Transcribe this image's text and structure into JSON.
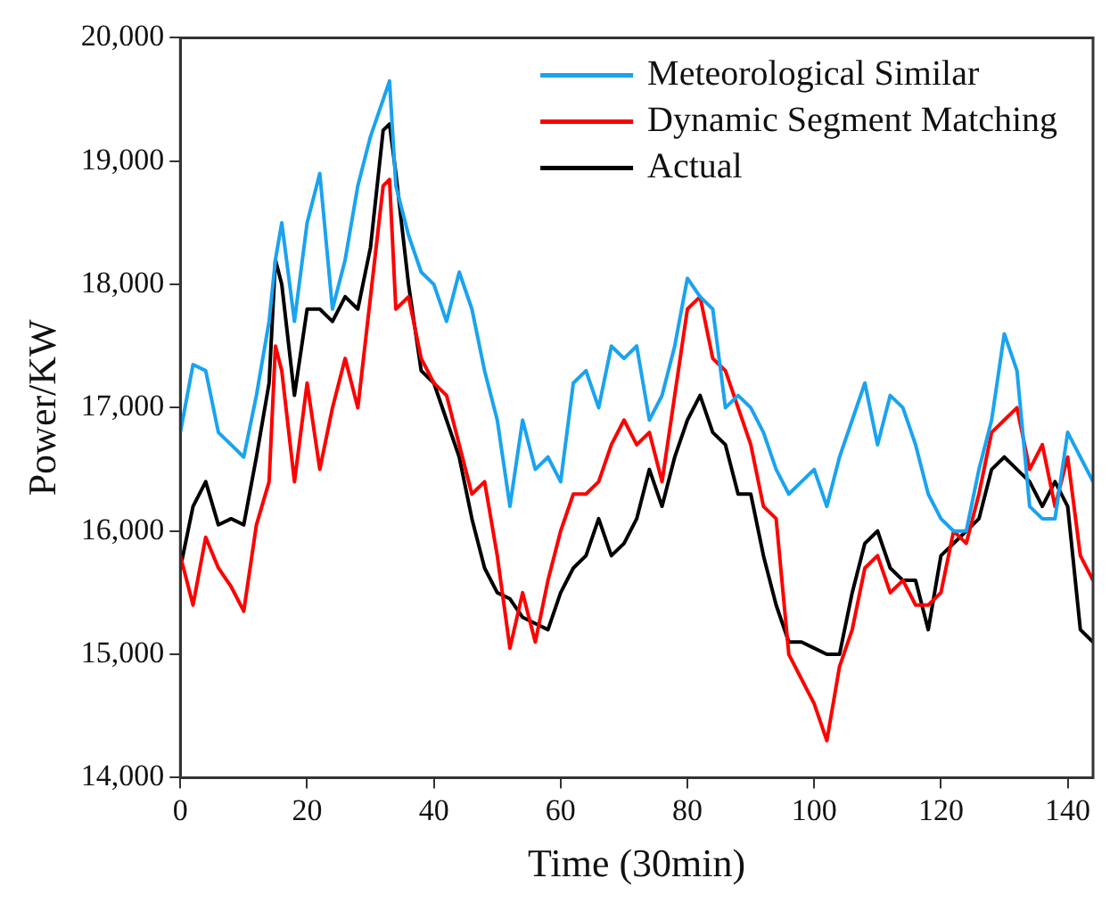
{
  "chart_data": {
    "type": "line",
    "xlabel": "Time (30min)",
    "ylabel": "Power/KW",
    "x": [
      0,
      2,
      4,
      6,
      8,
      10,
      12,
      14,
      15,
      16,
      18,
      20,
      22,
      24,
      26,
      28,
      30,
      32,
      33,
      34,
      36,
      38,
      40,
      42,
      44,
      46,
      48,
      50,
      52,
      54,
      56,
      58,
      60,
      62,
      64,
      66,
      68,
      70,
      72,
      74,
      76,
      78,
      80,
      82,
      84,
      86,
      88,
      90,
      92,
      94,
      96,
      98,
      100,
      102,
      104,
      106,
      108,
      110,
      112,
      114,
      116,
      118,
      120,
      122,
      124,
      126,
      128,
      130,
      132,
      134,
      136,
      138,
      140,
      142,
      144
    ],
    "xlim": [
      0,
      144
    ],
    "xticks": [
      0,
      20,
      40,
      60,
      80,
      100,
      120,
      140
    ],
    "ylim": [
      14000,
      20000
    ],
    "yticks": [
      {
        "value": 14000,
        "label": "14,000"
      },
      {
        "value": 15000,
        "label": "15,000"
      },
      {
        "value": 16000,
        "label": "16,000"
      },
      {
        "value": 17000,
        "label": "17,000"
      },
      {
        "value": 18000,
        "label": "18,000"
      },
      {
        "value": 19000,
        "label": "19,000"
      },
      {
        "value": 20000,
        "label": "20,000"
      }
    ],
    "grid": false,
    "legend": "top right",
    "marker": "none",
    "line_style": "solid",
    "series": [
      {
        "name": "Meteorological Similar",
        "color": "#1aa3f0",
        "values": [
          16800,
          17350,
          17300,
          16800,
          16700,
          16600,
          17100,
          17700,
          18200,
          18500,
          17700,
          18500,
          18900,
          17800,
          18200,
          18800,
          19200,
          19500,
          19650,
          18800,
          18400,
          18100,
          18000,
          17700,
          18100,
          17800,
          17300,
          16900,
          16200,
          16900,
          16500,
          16600,
          16400,
          17200,
          17300,
          17000,
          17500,
          17400,
          17500,
          16900,
          17100,
          17500,
          18050,
          17900,
          17800,
          17000,
          17100,
          17000,
          16800,
          16500,
          16300,
          16400,
          16500,
          16200,
          16600,
          16900,
          17200,
          16700,
          17100,
          17000,
          16700,
          16300,
          16100,
          16000,
          16000,
          16500,
          16900,
          17600,
          17300,
          16200,
          16100,
          16100,
          16800,
          16600,
          16400
        ]
      },
      {
        "name": "Dynamic Segment Matching",
        "color": "#ff0000",
        "values": [
          15800,
          15400,
          15950,
          15700,
          15550,
          15350,
          16050,
          16400,
          17500,
          17300,
          16400,
          17200,
          16500,
          17000,
          17400,
          17000,
          17900,
          18800,
          18850,
          17800,
          17900,
          17400,
          17200,
          17100,
          16700,
          16300,
          16400,
          15800,
          15050,
          15500,
          15100,
          15600,
          16000,
          16300,
          16300,
          16400,
          16700,
          16900,
          16700,
          16800,
          16400,
          17100,
          17800,
          17900,
          17400,
          17300,
          17000,
          16700,
          16200,
          16100,
          15000,
          14800,
          14600,
          14300,
          14900,
          15200,
          15700,
          15800,
          15500,
          15600,
          15400,
          15400,
          15500,
          16000,
          15900,
          16300,
          16800,
          16900,
          17000,
          16500,
          16700,
          16200,
          16600,
          15800,
          15600
        ]
      },
      {
        "name": "Actual",
        "color": "#000000",
        "values": [
          15700,
          16200,
          16400,
          16050,
          16100,
          16050,
          16600,
          17200,
          18200,
          18000,
          17100,
          17800,
          17800,
          17700,
          17900,
          17800,
          18300,
          19250,
          19300,
          18900,
          18000,
          17300,
          17200,
          16900,
          16600,
          16100,
          15700,
          15500,
          15450,
          15300,
          15250,
          15200,
          15500,
          15700,
          15800,
          16100,
          15800,
          15900,
          16100,
          16500,
          16200,
          16600,
          16900,
          17100,
          16800,
          16700,
          16300,
          16300,
          15800,
          15400,
          15100,
          15100,
          15050,
          15000,
          15000,
          15500,
          15900,
          16000,
          15700,
          15600,
          15600,
          15200,
          15800,
          15900,
          16000,
          16100,
          16500,
          16600,
          16500,
          16400,
          16200,
          16400,
          16200,
          15200,
          15100
        ]
      }
    ]
  }
}
